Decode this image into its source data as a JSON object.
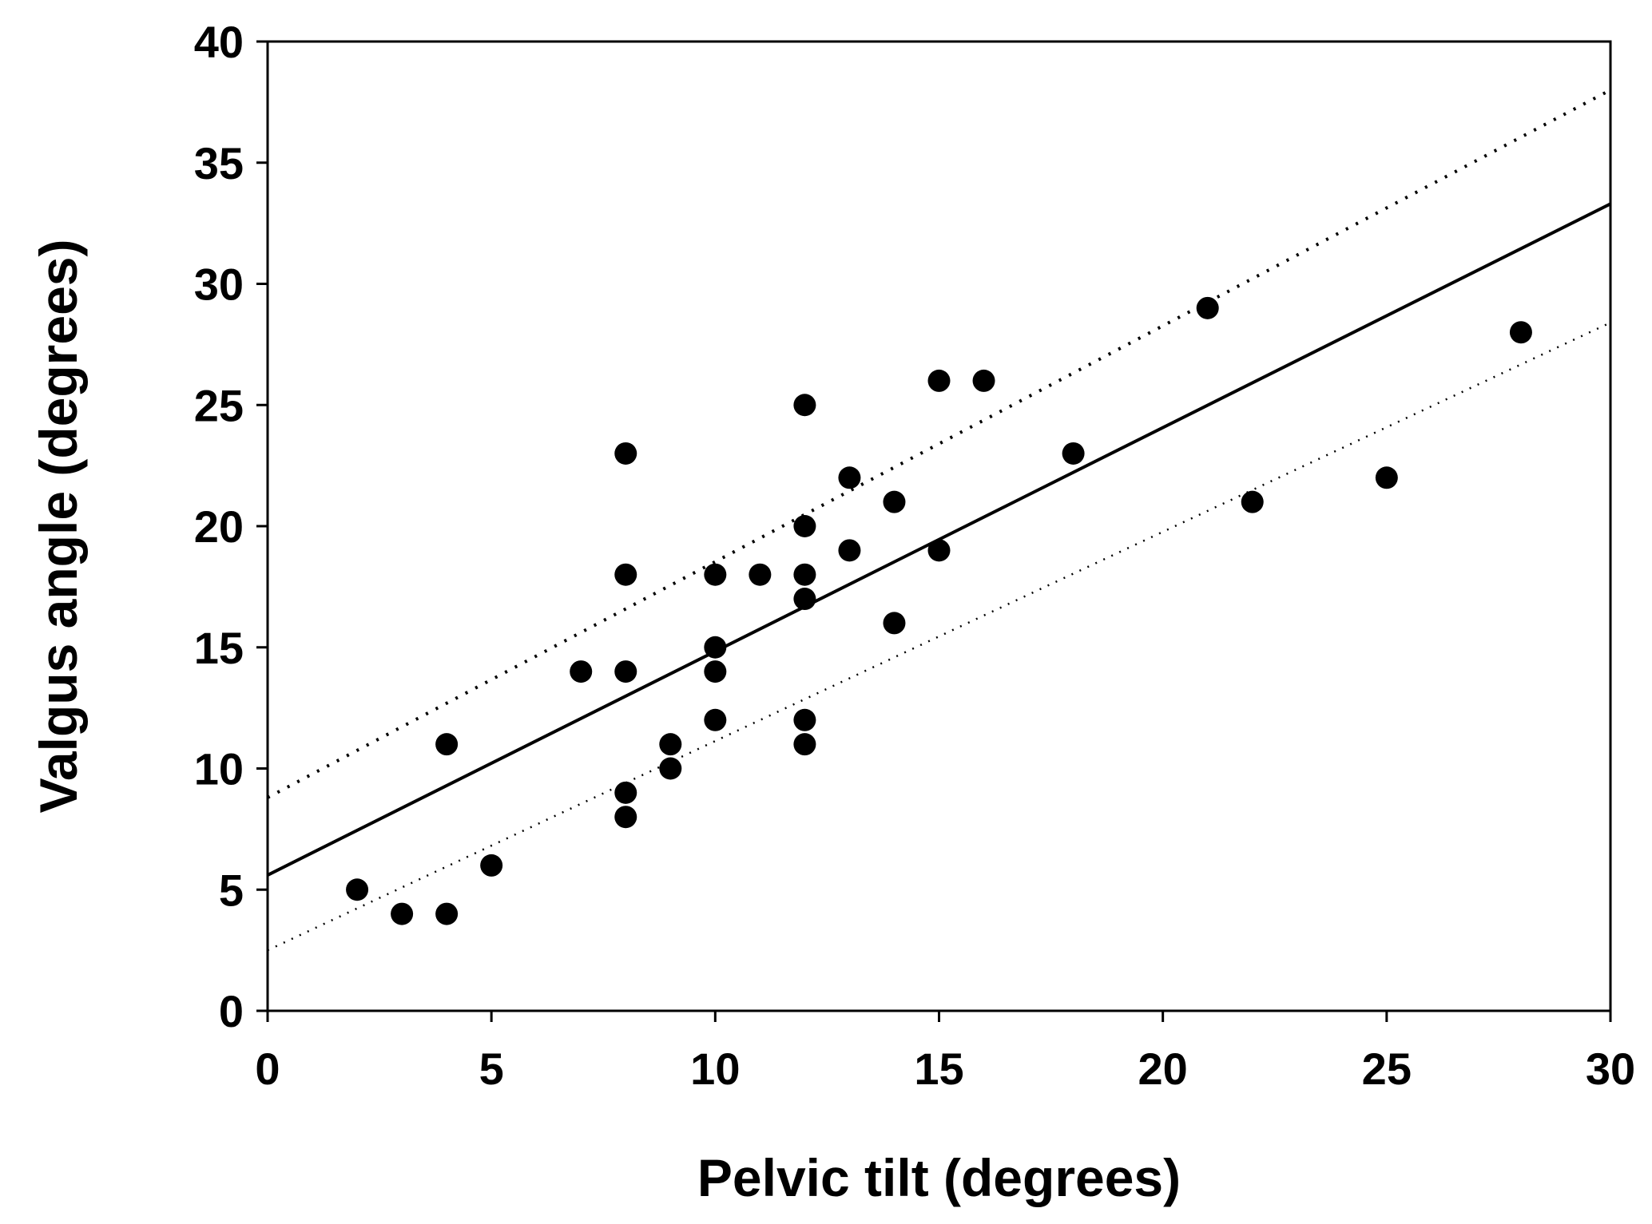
{
  "chart_data": {
    "type": "scatter",
    "title": "",
    "xlabel": "Pelvic tilt (degrees)",
    "ylabel": "Valgus angle (degrees)",
    "xlim": [
      0,
      30
    ],
    "ylim": [
      0,
      40
    ],
    "xticks": [
      0,
      5,
      10,
      15,
      20,
      25,
      30
    ],
    "yticks": [
      0,
      5,
      10,
      15,
      20,
      25,
      30,
      35,
      40
    ],
    "grid": false,
    "legend": "none",
    "points": [
      {
        "x": 2,
        "y": 5
      },
      {
        "x": 3,
        "y": 4
      },
      {
        "x": 4,
        "y": 4
      },
      {
        "x": 4,
        "y": 11
      },
      {
        "x": 5,
        "y": 6
      },
      {
        "x": 7,
        "y": 14
      },
      {
        "x": 8,
        "y": 23
      },
      {
        "x": 8,
        "y": 18
      },
      {
        "x": 8,
        "y": 14
      },
      {
        "x": 8,
        "y": 9
      },
      {
        "x": 8,
        "y": 8
      },
      {
        "x": 9,
        "y": 11
      },
      {
        "x": 9,
        "y": 10
      },
      {
        "x": 10,
        "y": 18
      },
      {
        "x": 10,
        "y": 15
      },
      {
        "x": 10,
        "y": 14
      },
      {
        "x": 10,
        "y": 12
      },
      {
        "x": 11,
        "y": 18
      },
      {
        "x": 12,
        "y": 25
      },
      {
        "x": 12,
        "y": 20
      },
      {
        "x": 12,
        "y": 18
      },
      {
        "x": 12,
        "y": 17
      },
      {
        "x": 12,
        "y": 12
      },
      {
        "x": 12,
        "y": 11
      },
      {
        "x": 13,
        "y": 22
      },
      {
        "x": 13,
        "y": 19
      },
      {
        "x": 14,
        "y": 21
      },
      {
        "x": 14,
        "y": 16
      },
      {
        "x": 15,
        "y": 26
      },
      {
        "x": 15,
        "y": 19
      },
      {
        "x": 16,
        "y": 26
      },
      {
        "x": 18,
        "y": 23
      },
      {
        "x": 21,
        "y": 29
      },
      {
        "x": 22,
        "y": 21
      },
      {
        "x": 25,
        "y": 22
      },
      {
        "x": 28,
        "y": 28
      }
    ],
    "lines": [
      {
        "name": "regression",
        "style": "solid",
        "x": [
          0,
          30
        ],
        "y": [
          5.6,
          33.3
        ]
      },
      {
        "name": "upper-bound",
        "style": "dotted-heavy",
        "x": [
          0,
          30
        ],
        "y": [
          8.8,
          38.0
        ]
      },
      {
        "name": "lower-bound",
        "style": "dotted-light",
        "x": [
          0,
          30
        ],
        "y": [
          2.5,
          28.4
        ]
      }
    ]
  }
}
